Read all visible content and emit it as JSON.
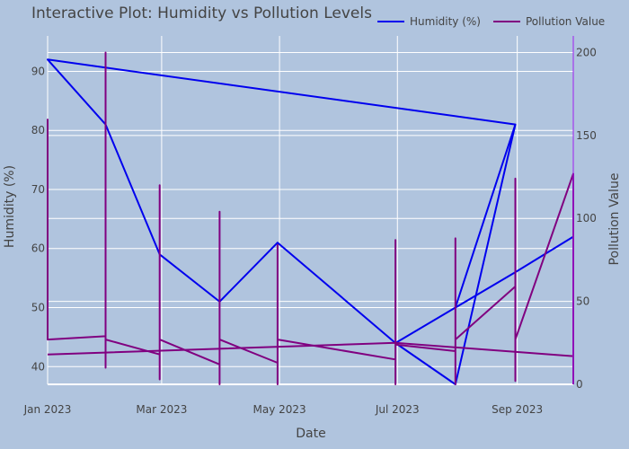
{
  "chart_data": {
    "type": "line",
    "title": "Interactive Plot: Humidity vs Pollution Levels",
    "xlabel": "Date",
    "ylabel": "Humidity (%)",
    "y2label": "Pollution Value",
    "x_range": [
      "2023-01-01",
      "2023-09-30"
    ],
    "ylim": [
      37,
      96
    ],
    "y2lim": [
      0,
      210
    ],
    "x_ticks": [
      {
        "date": "2023-01-01",
        "label": "Jan 2023"
      },
      {
        "date": "2023-03-01",
        "label": "Mar 2023"
      },
      {
        "date": "2023-05-01",
        "label": "May 2023"
      },
      {
        "date": "2023-07-01",
        "label": "Jul 2023"
      },
      {
        "date": "2023-09-01",
        "label": "Sep 2023"
      }
    ],
    "y_ticks": [
      40,
      50,
      60,
      70,
      80,
      90
    ],
    "y2_ticks": [
      0,
      50,
      100,
      150,
      200
    ],
    "grid": true,
    "legend_position": "top-right",
    "series": [
      {
        "name": "Humidity (%)",
        "color": "#0000ee",
        "axis": "left",
        "points": [
          [
            "2023-01-01",
            92
          ],
          [
            "2023-01-31",
            81
          ],
          [
            "2023-02-28",
            59
          ],
          [
            "2023-03-31",
            51
          ],
          [
            "2023-04-30",
            61
          ],
          [
            "2023-06-30",
            44
          ],
          [
            "2023-07-31",
            37
          ],
          [
            "2023-08-31",
            81
          ],
          [
            "2023-01-01",
            92
          ],
          [
            "2023-08-31",
            81
          ],
          [
            "2023-07-31",
            50
          ],
          [
            "2023-06-30",
            44
          ],
          [
            "2023-08-31",
            56
          ],
          [
            "2023-09-30",
            62
          ]
        ]
      },
      {
        "name": "Pollution Value",
        "color": "#800080",
        "axis": "right",
        "points": [
          [
            "2023-01-01",
            160
          ],
          [
            "2023-01-01",
            27
          ],
          [
            "2023-01-31",
            29
          ],
          [
            "2023-01-31",
            200
          ],
          [
            "2023-01-31",
            10
          ],
          [
            "2023-01-31",
            27
          ],
          [
            "2023-02-28",
            18
          ],
          [
            "2023-02-28",
            3
          ],
          [
            "2023-02-28",
            120
          ],
          [
            "2023-02-28",
            27
          ],
          [
            "2023-03-31",
            12
          ],
          [
            "2023-03-31",
            0
          ],
          [
            "2023-03-31",
            104
          ],
          [
            "2023-03-31",
            27
          ],
          [
            "2023-04-30",
            13
          ],
          [
            "2023-04-30",
            0
          ],
          [
            "2023-04-30",
            84
          ],
          [
            "2023-04-30",
            27
          ],
          [
            "2023-06-30",
            15
          ],
          [
            "2023-06-30",
            0
          ],
          [
            "2023-06-30",
            87
          ],
          [
            "2023-06-30",
            24
          ],
          [
            "2023-07-31",
            20
          ],
          [
            "2023-07-31",
            0
          ],
          [
            "2023-07-31",
            88
          ],
          [
            "2023-07-31",
            27
          ],
          [
            "2023-08-31",
            59
          ],
          [
            "2023-08-31",
            2
          ],
          [
            "2023-08-31",
            124
          ],
          [
            "2023-08-31",
            27
          ],
          [
            "2023-09-30",
            127
          ],
          [
            "2023-09-30",
            0
          ]
        ],
        "trend": [
          [
            "2023-01-01",
            18
          ],
          [
            "2023-06-30",
            25
          ],
          [
            "2023-09-30",
            17
          ]
        ]
      }
    ]
  }
}
